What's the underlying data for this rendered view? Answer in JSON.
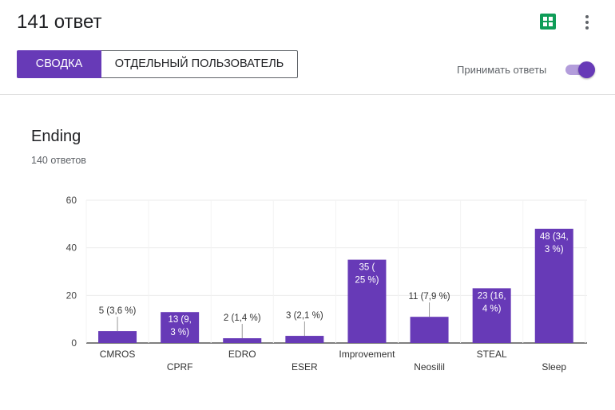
{
  "header": {
    "title": "141 ответ",
    "sheets_icon": "google-sheets-icon",
    "more_icon": "more-vert-icon",
    "tabs": [
      {
        "label": "СВОДКА",
        "active": true
      },
      {
        "label": "ОТДЕЛЬНЫЙ ПОЛЬЗОВАТЕЛЬ",
        "active": false
      }
    ],
    "accept_responses_label": "Принимать ответы",
    "accept_responses_on": true
  },
  "colors": {
    "accent": "#673ab7",
    "accent_light": "#b39ddb",
    "sheets_green": "#0f9d58"
  },
  "question": {
    "title": "Ending",
    "response_count": "140 ответов"
  },
  "chart_data": {
    "type": "bar",
    "categories": [
      "CMROS",
      "CPRF",
      "EDRO",
      "ESER",
      "Improvement",
      "Neosilil",
      "STEAL",
      "Sleep"
    ],
    "values": [
      5,
      13,
      2,
      3,
      35,
      11,
      23,
      48
    ],
    "data_labels": [
      [
        "5 (3,6 %)"
      ],
      [
        "13 (9,",
        "3 %)"
      ],
      [
        "2 (1,4 %)"
      ],
      [
        "3 (2,1 %)"
      ],
      [
        "35 (",
        "25 %)"
      ],
      [
        "11 (7,9 %)"
      ],
      [
        "23 (16,",
        "4 %)"
      ],
      [
        "48 (34,",
        "3 %)"
      ]
    ],
    "yticks": [
      0,
      20,
      40,
      60
    ],
    "ylim": [
      0,
      60
    ],
    "grid": true,
    "color": "#673ab7"
  }
}
